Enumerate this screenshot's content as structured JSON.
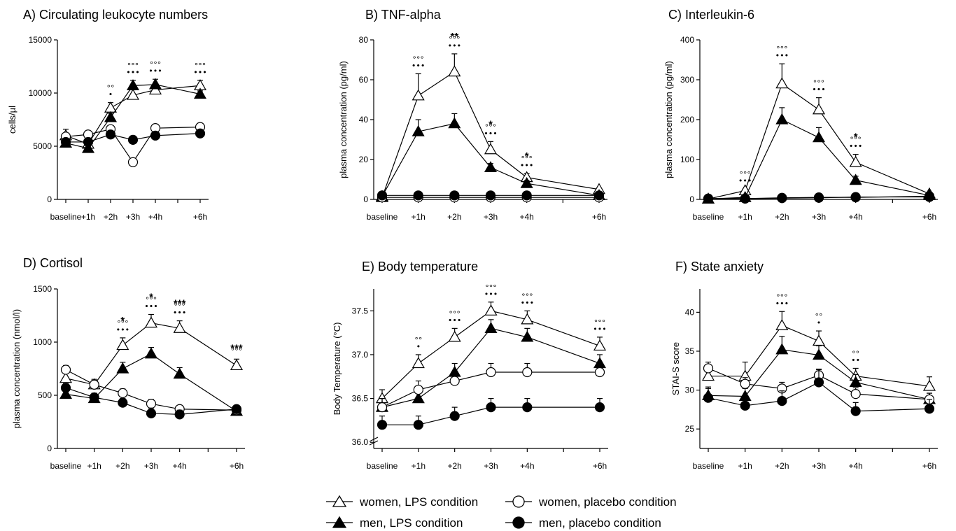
{
  "chart_data": [
    {
      "type": "line",
      "title": "A) Circulating leukocyte numbers",
      "ylabel": "cells/µl",
      "categories": [
        "baseline",
        "+1h",
        "+2h",
        "+3h",
        "+4h",
        "+6h"
      ],
      "x": [
        0,
        1,
        2,
        3,
        4,
        6
      ],
      "yticks": [
        0,
        5000,
        10000,
        15000
      ],
      "ylim": [
        0,
        15000
      ],
      "series": [
        {
          "name": "women, LPS condition",
          "values": [
            6000,
            5200,
            8600,
            9800,
            10300,
            10700
          ],
          "error": [
            600,
            300,
            500,
            500,
            400,
            500
          ]
        },
        {
          "name": "men, LPS condition",
          "values": [
            5300,
            4800,
            7700,
            10700,
            10800,
            9900
          ],
          "error": [
            300,
            200,
            400,
            500,
            500,
            300
          ]
        },
        {
          "name": "women, placebo condition",
          "values": [
            5900,
            6100,
            6600,
            3500,
            6700,
            6800
          ],
          "error": [
            300,
            200,
            200,
            100,
            200,
            200
          ]
        },
        {
          "name": "men, placebo condition",
          "values": [
            5400,
            5400,
            6100,
            5600,
            6000,
            6200
          ],
          "error": [
            200,
            200,
            200,
            200,
            200,
            200
          ]
        }
      ],
      "annotations": [
        {
          "x": 2,
          "text": "°°"
        },
        {
          "x": 2,
          "text": "•"
        },
        {
          "x": 3,
          "text": "°°°"
        },
        {
          "x": 3,
          "text": "•••"
        },
        {
          "x": 4,
          "text": "°°°"
        },
        {
          "x": 4,
          "text": "•••"
        },
        {
          "x": 6,
          "text": "°°°"
        },
        {
          "x": 6,
          "text": "•••"
        }
      ]
    },
    {
      "type": "line",
      "title": "B) TNF-alpha",
      "ylabel": "plasma concentration (pg/ml)",
      "categories": [
        "baseline",
        "+1h",
        "+2h",
        "+3h",
        "+4h",
        "+6h"
      ],
      "x": [
        0,
        1,
        2,
        3,
        4,
        6
      ],
      "yticks": [
        0,
        20,
        40,
        60,
        80
      ],
      "ylim": [
        0,
        80
      ],
      "series": [
        {
          "name": "women, LPS condition",
          "values": [
            1,
            52,
            64,
            25,
            11,
            5
          ],
          "error": [
            0.5,
            11,
            9,
            4,
            2,
            0.5
          ]
        },
        {
          "name": "men, LPS condition",
          "values": [
            1.5,
            34,
            38,
            16,
            8,
            2
          ],
          "error": [
            0.5,
            6,
            5,
            2,
            1.5,
            0.5
          ]
        },
        {
          "name": "women, placebo condition",
          "values": [
            1,
            1,
            1,
            1,
            1,
            1
          ],
          "error": [
            0.3,
            0.3,
            0.3,
            0.3,
            0.3,
            0.3
          ]
        },
        {
          "name": "men, placebo condition",
          "values": [
            2,
            2,
            2,
            2,
            2,
            2
          ],
          "error": [
            0.3,
            0.3,
            0.3,
            0.3,
            0.3,
            0.3
          ]
        }
      ],
      "annotations": [
        {
          "x": 1,
          "text": "°°°"
        },
        {
          "x": 1,
          "text": "•••"
        },
        {
          "x": 2,
          "text": "**"
        },
        {
          "x": 2,
          "text": "°°°"
        },
        {
          "x": 2,
          "text": "•••"
        },
        {
          "x": 3,
          "text": "*"
        },
        {
          "x": 3,
          "text": "°°°"
        },
        {
          "x": 3,
          "text": "•••"
        },
        {
          "x": 4,
          "text": "*"
        },
        {
          "x": 4,
          "text": "°°°"
        },
        {
          "x": 4,
          "text": "•••"
        }
      ]
    },
    {
      "type": "line",
      "title": "C) Interleukin-6",
      "ylabel": "plasma concentration (pg/ml)",
      "categories": [
        "baseline",
        "+1h",
        "+2h",
        "+3h",
        "+4h",
        "+6h"
      ],
      "x": [
        0,
        1,
        2,
        3,
        4,
        6
      ],
      "yticks": [
        0,
        100,
        200,
        300,
        400
      ],
      "ylim": [
        0,
        400
      ],
      "series": [
        {
          "name": "women, LPS condition",
          "values": [
            1,
            22,
            290,
            225,
            93,
            14
          ],
          "error": [
            1,
            4,
            50,
            30,
            20,
            3
          ]
        },
        {
          "name": "men, LPS condition",
          "values": [
            1,
            5,
            200,
            155,
            48,
            10
          ],
          "error": [
            1,
            2,
            30,
            25,
            10,
            2
          ]
        },
        {
          "name": "women, placebo condition",
          "values": [
            2,
            2,
            3,
            4,
            6,
            6
          ],
          "error": [
            1,
            1,
            1,
            1,
            1,
            1
          ]
        },
        {
          "name": "men, placebo condition",
          "values": [
            2,
            2,
            4,
            5,
            5,
            8
          ],
          "error": [
            1,
            1,
            1,
            1,
            1,
            1
          ]
        }
      ],
      "annotations": [
        {
          "x": 1,
          "text": "°°°"
        },
        {
          "x": 1,
          "text": "•••"
        },
        {
          "x": 2,
          "text": "°°°"
        },
        {
          "x": 2,
          "text": "•••"
        },
        {
          "x": 3,
          "text": "°°°"
        },
        {
          "x": 3,
          "text": "•••"
        },
        {
          "x": 4,
          "text": "*"
        },
        {
          "x": 4,
          "text": "°°°"
        },
        {
          "x": 4,
          "text": "•••"
        }
      ]
    },
    {
      "type": "line",
      "title": "D) Cortisol",
      "ylabel": "plasma concentration (nmol/l)",
      "categories": [
        "baseline",
        "+1h",
        "+2h",
        "+3h",
        "+4h",
        "+6h"
      ],
      "x": [
        0,
        1,
        2,
        3,
        4,
        6
      ],
      "yticks": [
        0,
        500,
        1000,
        1500
      ],
      "ylim": [
        0,
        1500
      ],
      "series": [
        {
          "name": "women, LPS condition",
          "values": [
            660,
            600,
            970,
            1180,
            1130,
            780
          ],
          "error": [
            50,
            50,
            70,
            80,
            70,
            60
          ]
        },
        {
          "name": "men, LPS condition",
          "values": [
            510,
            470,
            750,
            890,
            700,
            350
          ],
          "error": [
            40,
            40,
            60,
            60,
            60,
            30
          ]
        },
        {
          "name": "women, placebo condition",
          "values": [
            740,
            600,
            520,
            420,
            370,
            360
          ],
          "error": [
            40,
            40,
            40,
            40,
            30,
            30
          ]
        },
        {
          "name": "men, placebo condition",
          "values": [
            570,
            480,
            430,
            330,
            320,
            370
          ],
          "error": [
            40,
            40,
            40,
            50,
            40,
            30
          ]
        }
      ],
      "annotations": [
        {
          "x": 2,
          "text": "*"
        },
        {
          "x": 2,
          "text": "°°°"
        },
        {
          "x": 2,
          "text": "•••"
        },
        {
          "x": 3,
          "text": "*"
        },
        {
          "x": 3,
          "text": "°°°"
        },
        {
          "x": 3,
          "text": "•••"
        },
        {
          "x": 4,
          "text": "***"
        },
        {
          "x": 4,
          "text": "°°°"
        },
        {
          "x": 4,
          "text": "•••"
        },
        {
          "x": 6,
          "text": "***"
        },
        {
          "x": 6,
          "text": "°°°"
        }
      ]
    },
    {
      "type": "line",
      "title": "E) Body temperature",
      "ylabel": "Body Temperature (°C)",
      "categories": [
        "baseline",
        "+1h",
        "+2h",
        "+3h",
        "+4h",
        "+6h"
      ],
      "x": [
        0,
        1,
        2,
        3,
        4,
        6
      ],
      "yticks": [
        36.0,
        36.5,
        37.0,
        37.5
      ],
      "ylim": [
        35.93,
        37.75
      ],
      "axis_break": true,
      "series": [
        {
          "name": "women, LPS condition",
          "values": [
            36.5,
            36.9,
            37.2,
            37.5,
            37.4,
            37.1
          ],
          "error": [
            0.1,
            0.1,
            0.1,
            0.1,
            0.1,
            0.1
          ]
        },
        {
          "name": "men, LPS condition",
          "values": [
            36.4,
            36.5,
            36.8,
            37.3,
            37.2,
            36.9
          ],
          "error": [
            0.1,
            0.1,
            0.1,
            0.1,
            0.1,
            0.1
          ]
        },
        {
          "name": "women, placebo condition",
          "values": [
            36.4,
            36.6,
            36.7,
            36.8,
            36.8,
            36.8
          ],
          "error": [
            0.1,
            0.1,
            0.1,
            0.1,
            0.1,
            0.1
          ]
        },
        {
          "name": "men, placebo condition",
          "values": [
            36.2,
            36.2,
            36.3,
            36.4,
            36.4,
            36.4
          ],
          "error": [
            0.1,
            0.1,
            0.1,
            0.1,
            0.1,
            0.1
          ]
        }
      ],
      "annotations": [
        {
          "x": 1,
          "text": "°°"
        },
        {
          "x": 1,
          "text": "•"
        },
        {
          "x": 2,
          "text": "°°°"
        },
        {
          "x": 2,
          "text": "•••"
        },
        {
          "x": 3,
          "text": "°°°"
        },
        {
          "x": 3,
          "text": "•••"
        },
        {
          "x": 4,
          "text": "°°°"
        },
        {
          "x": 4,
          "text": "•••"
        },
        {
          "x": 6,
          "text": "°°°"
        },
        {
          "x": 6,
          "text": "•••"
        }
      ]
    },
    {
      "type": "line",
      "title": "F) State anxiety",
      "ylabel": "STAI-S score",
      "categories": [
        "baseline",
        "+1h",
        "+2h",
        "+3h",
        "+4h",
        "+6h"
      ],
      "x": [
        0,
        1,
        2,
        3,
        4,
        6
      ],
      "yticks": [
        25,
        30,
        35,
        40
      ],
      "ylim": [
        22.5,
        43
      ],
      "series": [
        {
          "name": "women, LPS condition",
          "values": [
            31.8,
            31.8,
            38.3,
            36.3,
            31.8,
            30.5
          ],
          "error": [
            1.2,
            1.8,
            1.8,
            1.3,
            1.0,
            1.2
          ]
        },
        {
          "name": "men, LPS condition",
          "values": [
            29.3,
            29.2,
            35.2,
            34.5,
            31.0,
            28.8
          ],
          "error": [
            1.1,
            1.0,
            1.7,
            1.2,
            1.0,
            0.8
          ]
        },
        {
          "name": "women, placebo condition",
          "values": [
            32.8,
            30.8,
            30.2,
            31.9,
            29.5,
            28.8
          ],
          "error": [
            0.8,
            0.8,
            0.8,
            0.8,
            0.8,
            0.8
          ]
        },
        {
          "name": "men, placebo condition",
          "values": [
            29.0,
            28.0,
            28.6,
            31.0,
            27.3,
            27.6
          ],
          "error": [
            1.2,
            1.2,
            1.3,
            1.6,
            1.1,
            1.2
          ]
        }
      ],
      "annotations": [
        {
          "x": 2,
          "text": "°°°"
        },
        {
          "x": 2,
          "text": "•••"
        },
        {
          "x": 3,
          "text": "°°"
        },
        {
          "x": 3,
          "text": "•"
        },
        {
          "x": 4,
          "text": "°°"
        },
        {
          "x": 4,
          "text": "••"
        }
      ]
    }
  ],
  "legend": [
    {
      "label": "women, LPS condition",
      "marker": "open-triangle"
    },
    {
      "label": "women, placebo condition",
      "marker": "open-circle"
    },
    {
      "label": "men, LPS condition",
      "marker": "filled-triangle"
    },
    {
      "label": "men, placebo condition",
      "marker": "filled-circle"
    }
  ]
}
